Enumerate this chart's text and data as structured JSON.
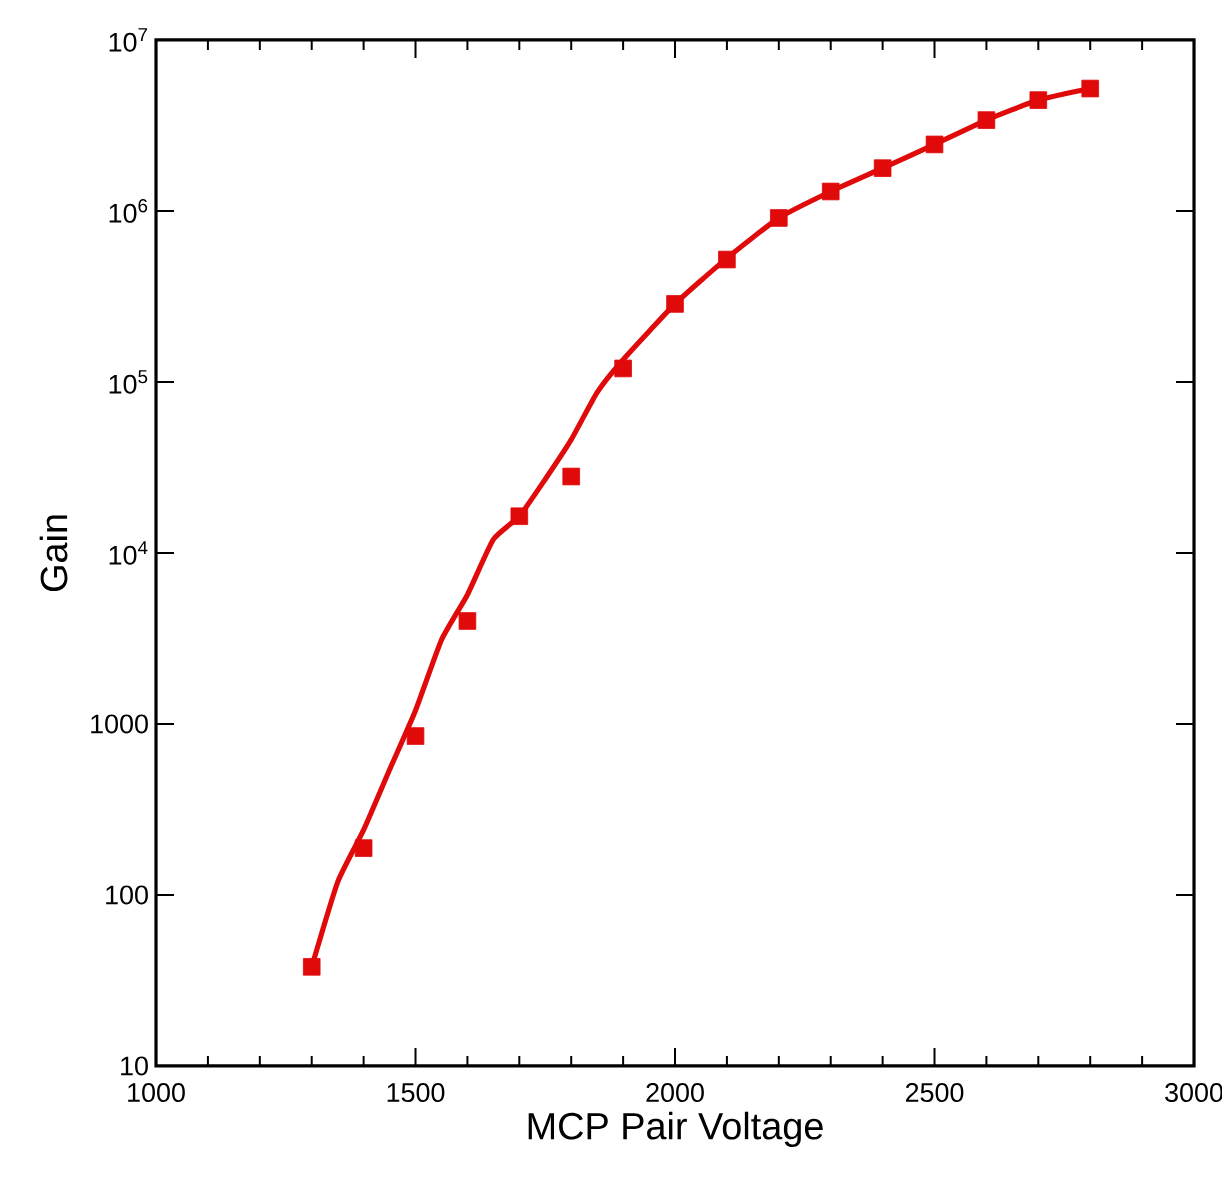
{
  "chart_data": {
    "type": "scatter",
    "xlabel": "MCP Pair Voltage",
    "ylabel": "Gain",
    "log": "y",
    "grid": false,
    "xlim": [
      1000,
      3000
    ],
    "xticks": [
      1000,
      1500,
      2000,
      2500,
      3000
    ],
    "ylim": [
      10,
      10000000
    ],
    "yticks": [
      10,
      100,
      1000,
      {
        "value": 10000,
        "label": "10$^{4}$"
      },
      {
        "value": 100000,
        "label": "10$^{5}$"
      },
      {
        "value": 1000000,
        "label": "10$^{6}$"
      },
      {
        "value": 10000000,
        "label": "10$^{7}$"
      }
    ],
    "x": [
      1300,
      1400,
      1500,
      1600,
      1700,
      1800,
      1900,
      2000,
      2100,
      2200,
      2300,
      2400,
      2500,
      2600,
      2700,
      2800
    ],
    "series": [
      {
        "type": "line",
        "color": "#e00a0a",
        "marker": "none",
        "line_style": "solid",
        "x": [
          1300,
          1350,
          1400,
          1450,
          1500,
          1550,
          1600,
          1650,
          1700,
          1750,
          1800,
          1850,
          1900,
          2000,
          2100,
          2200,
          2300,
          2400,
          2500,
          2600,
          2700,
          2800
        ],
        "values": [
          38,
          119,
          240,
          540,
          1200,
          3100,
          5700,
          12000,
          16400,
          27000,
          46000,
          87000,
          135000,
          286000,
          530000,
          910000,
          1300000,
          1780000,
          2450000,
          3400000,
          4450000,
          5200000
        ]
      },
      {
        "color": "#e00a0a",
        "marker": "square",
        "values": [
          38,
          188,
          850,
          4000,
          16400,
          28000,
          120000,
          286000,
          520000,
          910000,
          1300000,
          1780000,
          2450000,
          3400000,
          4450000,
          5200000
        ]
      }
    ]
  }
}
